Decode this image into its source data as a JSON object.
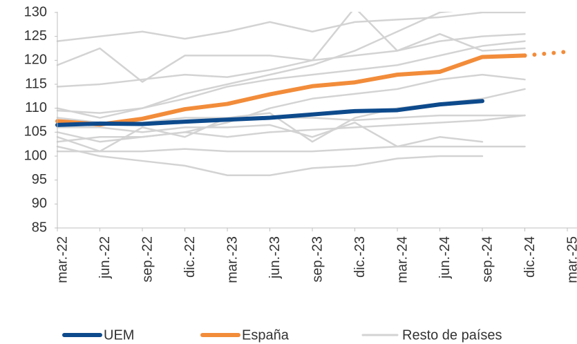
{
  "chart_data": {
    "type": "line",
    "categories": [
      "mar.-22",
      "jun.-22",
      "sep.-22",
      "dic.-22",
      "mar.-23",
      "jun.-23",
      "sep.-23",
      "dic.-23",
      "mar.-24",
      "jun.-24",
      "sep.-24",
      "dic.-24",
      "mar.-25"
    ],
    "ylim": [
      85,
      130
    ],
    "yticks": [
      85,
      90,
      95,
      100,
      105,
      110,
      115,
      120,
      125,
      130
    ],
    "series": [
      {
        "name": "UEM",
        "color": "#0d4a8c",
        "values": [
          106.5,
          106.8,
          106.7,
          107.2,
          107.6,
          108.0,
          108.7,
          109.4,
          109.6,
          110.8,
          111.5,
          null,
          null
        ]
      },
      {
        "name": "España",
        "color": "#f28c3a",
        "values": [
          107.3,
          106.6,
          107.8,
          109.8,
          110.9,
          112.9,
          114.6,
          115.4,
          117.0,
          117.6,
          120.7,
          121.0,
          121.8
        ],
        "dotted_last": true
      }
    ],
    "others": {
      "name": "Resto de países",
      "color": "#d3d3d3",
      "lines": [
        [
          124,
          125,
          126,
          124.5,
          126,
          128,
          126,
          128,
          128.5,
          129,
          130,
          130,
          null
        ],
        [
          119,
          122.5,
          115.5,
          121,
          121,
          121,
          120,
          131,
          122,
          125.5,
          122,
          122.5,
          null
        ],
        [
          114.5,
          115,
          116,
          117,
          116.5,
          118,
          120,
          121,
          122,
          124,
          125,
          125.5,
          null
        ],
        [
          110,
          108,
          110,
          113,
          115,
          117,
          119,
          122,
          126,
          130,
          131,
          null,
          null
        ],
        [
          109.5,
          109,
          110,
          112,
          114.5,
          116,
          117,
          118,
          119,
          121,
          123,
          124,
          null
        ],
        [
          105,
          103,
          104,
          105,
          107,
          110,
          112,
          113,
          114,
          116,
          117,
          116,
          null
        ],
        [
          104,
          101,
          106,
          104,
          108,
          109,
          103,
          108,
          110,
          111,
          112,
          114,
          null
        ],
        [
          103,
          104,
          104,
          105,
          104,
          105,
          105.5,
          106,
          106.5,
          107,
          107.5,
          108.5,
          null
        ],
        [
          102,
          100,
          99,
          98,
          96,
          96,
          97.5,
          98,
          99.5,
          100,
          100,
          null,
          null
        ],
        [
          101,
          101,
          101,
          101.5,
          101,
          101,
          101,
          101.5,
          102,
          102,
          102,
          102,
          null
        ],
        [
          106,
          106,
          105,
          106,
          106,
          106.5,
          104,
          107,
          102,
          104,
          103,
          null,
          null
        ],
        [
          108,
          107,
          107,
          108,
          108,
          108,
          108,
          107.5,
          108,
          108.5,
          108.5,
          108.5,
          null
        ]
      ]
    }
  }
}
